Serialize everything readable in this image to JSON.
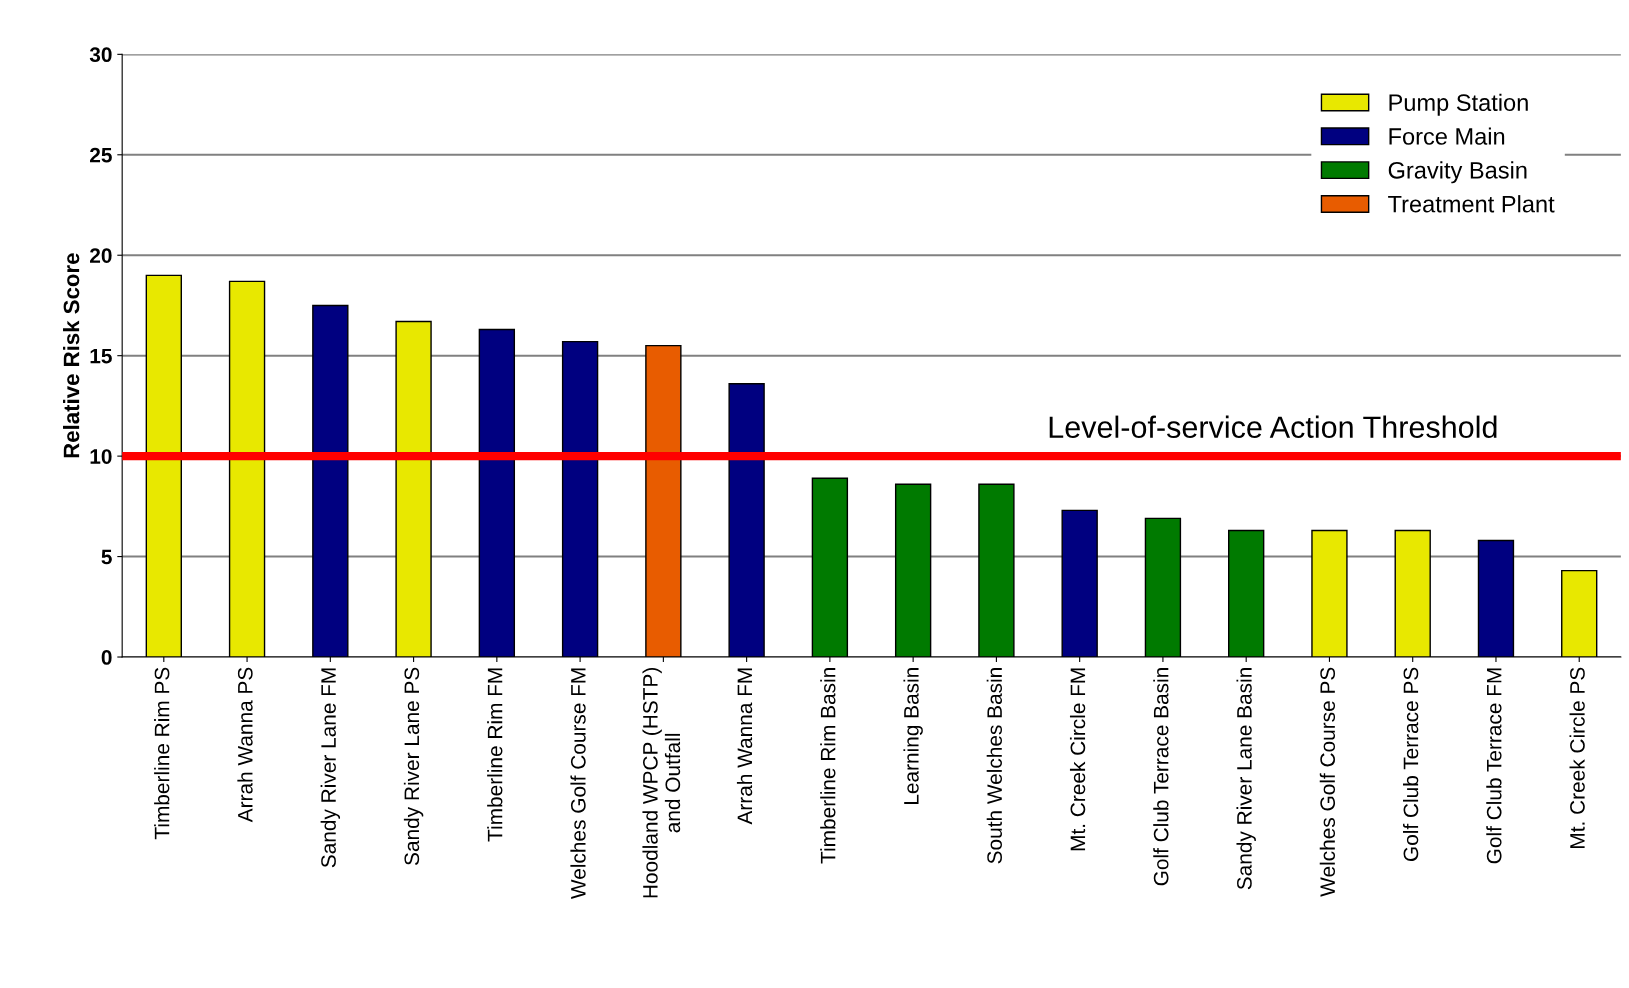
{
  "chart_data": {
    "type": "bar",
    "ylabel": "Relative Risk Score",
    "categories": [
      "Timberline Rim PS",
      "Arrah Wanna PS",
      "Sandy River Lane FM",
      "Sandy River Lane PS",
      "Timberline Rim FM",
      "Welches Golf Course FM",
      "Hoodland WPCP (HSTP)\nand Outfall",
      "Arrah Wanna FM",
      "Timberline Rim Basin",
      "Learning Basin",
      "South Welches Basin",
      "Mt. Creek Circle FM",
      "Golf Club Terrace Basin",
      "Sandy River Lane Basin",
      "Welches Golf Course PS",
      "Golf Club Terrace PS",
      "Golf Club Terrace FM",
      "Mt. Creek Circle PS"
    ],
    "series": [
      {
        "name": "Pump Station",
        "color": "#e8e800",
        "values": [
          19.0,
          18.7,
          null,
          16.7,
          null,
          null,
          null,
          null,
          null,
          null,
          null,
          null,
          null,
          null,
          6.3,
          6.3,
          null,
          4.3
        ]
      },
      {
        "name": "Force Main",
        "color": "#000080",
        "values": [
          null,
          null,
          17.5,
          null,
          16.3,
          15.7,
          null,
          13.6,
          null,
          null,
          null,
          7.3,
          null,
          null,
          null,
          null,
          5.8,
          null
        ]
      },
      {
        "name": "Gravity Basin",
        "color": "#007a00",
        "values": [
          null,
          null,
          null,
          null,
          null,
          null,
          null,
          null,
          8.9,
          8.6,
          8.6,
          null,
          6.9,
          6.3,
          null,
          null,
          null,
          null
        ]
      },
      {
        "name": "Treatment Plant",
        "color": "#e85c00",
        "values": [
          null,
          null,
          null,
          null,
          null,
          null,
          15.5,
          null,
          null,
          null,
          null,
          null,
          null,
          null,
          null,
          null,
          null,
          null
        ]
      }
    ],
    "ylim": [
      0,
      30
    ],
    "yticks": [
      0,
      5,
      10,
      15,
      20,
      25,
      30
    ],
    "grid": "y",
    "legend": "top right",
    "ref_lines": [
      {
        "axis": "y",
        "value": 10,
        "label": "Level-of-service Action Threshold",
        "color": "#ff0000"
      }
    ]
  }
}
